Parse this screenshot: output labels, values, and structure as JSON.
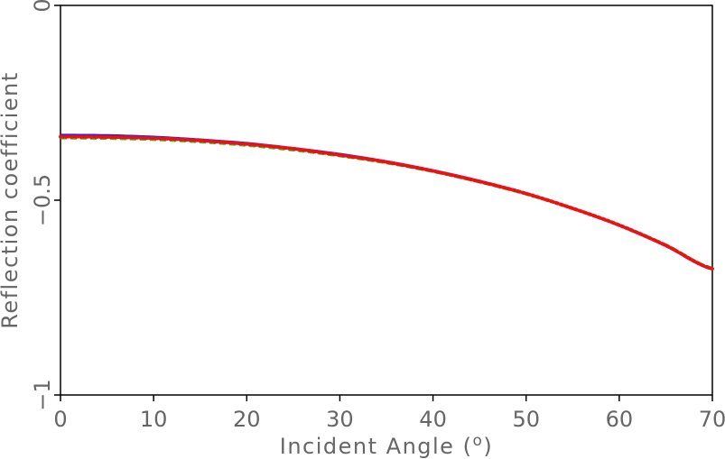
{
  "chart_data": {
    "type": "line",
    "title": "",
    "xlabel": "Incident Angle (",
    "xlabel_unit": "o",
    "xlabel_close": ")",
    "ylabel": "Reflection coefficient",
    "xlim": [
      0,
      70
    ],
    "ylim": [
      -1,
      0
    ],
    "xticks": [
      0,
      10,
      20,
      30,
      40,
      50,
      60,
      70
    ],
    "xtick_labels": [
      "0",
      "10",
      "20",
      "30",
      "40",
      "50",
      "60",
      "70"
    ],
    "yticks": [
      0,
      -0.5,
      -1
    ],
    "ytick_labels": [
      "0",
      "−0.5",
      "−1"
    ],
    "grid": false,
    "series": [
      {
        "color": "#1a1aff",
        "style": "solid",
        "x": [
          0,
          5,
          10,
          15,
          20,
          25,
          30,
          35,
          40,
          45,
          50,
          55,
          60,
          65,
          70
        ],
        "y": [
          -0.333,
          -0.334,
          -0.338,
          -0.345,
          -0.354,
          -0.367,
          -0.382,
          -0.401,
          -0.424,
          -0.451,
          -0.483,
          -0.521,
          -0.565,
          -0.617,
          -0.677
        ]
      },
      {
        "color": "#22cc22",
        "style": "dashed",
        "x": [
          0,
          5,
          10,
          15,
          20,
          25,
          30,
          35,
          40,
          45,
          50,
          55,
          60,
          65,
          70
        ],
        "y": [
          -0.34,
          -0.341,
          -0.344,
          -0.35,
          -0.359,
          -0.371,
          -0.386,
          -0.404,
          -0.426,
          -0.453,
          -0.484,
          -0.521,
          -0.564,
          -0.615,
          -0.675
        ]
      },
      {
        "color": "#ee1111",
        "style": "dotted",
        "x": [
          0,
          5,
          10,
          15,
          20,
          25,
          30,
          35,
          40,
          45,
          50,
          55,
          60,
          65,
          70
        ],
        "y": [
          -0.337,
          -0.338,
          -0.341,
          -0.347,
          -0.356,
          -0.368,
          -0.384,
          -0.402,
          -0.425,
          -0.452,
          -0.483,
          -0.521,
          -0.564,
          -0.616,
          -0.676
        ]
      }
    ]
  }
}
